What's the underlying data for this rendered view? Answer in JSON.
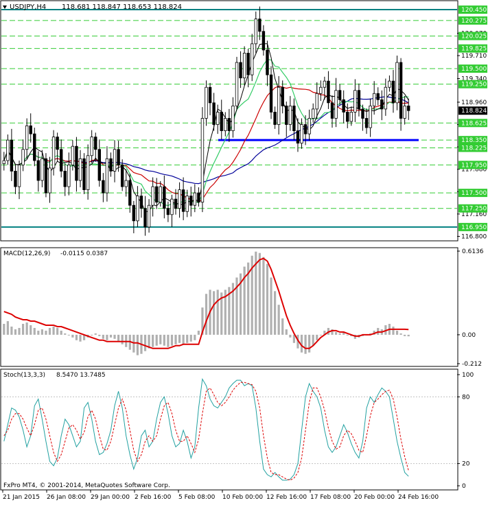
{
  "header": {
    "symbol": "USDJPY,H4",
    "ohlc": "118.681 118.847 118.653 118.824"
  },
  "colors": {
    "background": "#ffffff",
    "bull_candle": "#000000",
    "bear_candle": "#000000",
    "ma_fast": "#000000",
    "ma_mid": "#33cc66",
    "ma_slow": "#cc0000",
    "ma_long": "#000099",
    "level_line": "#008080",
    "dash_line": "#33cc33",
    "support_line": "#0000ff",
    "macd_hist": "#b0b0b0",
    "macd_signal": "#dd0000",
    "stoch_main": "#20a0a0",
    "stoch_signal": "#dd0000"
  },
  "footer": {
    "copyright": "FxPro MT4, © 2001-2014, MetaQuotes Software Corp."
  },
  "chart_data": [
    {
      "type": "candlestick",
      "title": "USDJPY,H4",
      "ylim": [
        116.75,
        120.55
      ],
      "y_ticks": [
        "116.800",
        "117.160",
        "117.520",
        "117.880",
        "118.240",
        "118.600",
        "118.960",
        "119.340",
        "119.710",
        "120.070"
      ],
      "level_labels": [
        "120.450",
        "120.275",
        "120.025",
        "119.825",
        "119.500",
        "119.250",
        "118.625",
        "118.350",
        "118.225",
        "117.950",
        "117.500",
        "117.250",
        "116.950"
      ],
      "current_price": "118.824",
      "levels": {
        "solid": [
          120.45,
          116.95
        ],
        "dashed": [
          120.275,
          120.025,
          119.825,
          119.5,
          119.25,
          118.625,
          118.35,
          118.225,
          117.95,
          117.5,
          117.25
        ]
      },
      "support_line": 118.35,
      "x_labels": [
        "21 Jan 2015",
        "26 Jan 08:00",
        "29 Jan 00:00",
        "2 Feb 16:00",
        "5 Feb 08:00",
        "10 Feb 00:00",
        "12 Feb 16:00",
        "17 Feb 08:00",
        "20 Feb 00:00",
        "24 Feb 16:00"
      ],
      "closes": [
        118.02,
        118.35,
        117.85,
        117.6,
        117.95,
        118.2,
        118.58,
        118.45,
        118.02,
        117.7,
        118.05,
        117.5,
        117.9,
        118.4,
        118.2,
        117.85,
        117.6,
        117.95,
        118.25,
        117.7,
        118.05,
        117.55,
        118.1,
        118.4,
        118.2,
        117.7,
        117.5,
        118.05,
        117.85,
        118.2,
        117.95,
        117.6,
        117.7,
        117.3,
        117.05,
        117.45,
        117.25,
        116.95,
        117.3,
        117.6,
        117.35,
        117.6,
        117.25,
        117.15,
        117.4,
        117.25,
        117.55,
        117.2,
        117.45,
        117.3,
        117.5,
        117.35,
        118.7,
        119.2,
        118.95,
        118.6,
        118.8,
        118.5,
        118.7,
        118.5,
        118.9,
        119.6,
        119.35,
        119.75,
        119.4,
        119.9,
        120.3,
        120.1,
        119.8,
        119.4,
        118.8,
        118.6,
        119.2,
        118.9,
        118.6,
        118.9,
        118.5,
        118.3,
        118.6,
        118.45,
        118.7,
        118.85,
        119.1,
        119.2,
        119.3,
        118.95,
        118.7,
        119.15,
        119.0,
        118.8,
        118.65,
        118.8,
        119.15,
        118.85,
        118.7,
        118.55,
        118.9,
        119.1,
        119.0,
        118.85,
        119.2,
        119.3,
        118.95,
        119.6,
        118.7,
        118.9,
        118.824
      ],
      "series": [
        {
          "name": "MA",
          "values": []
        }
      ]
    },
    {
      "type": "macd",
      "title": "MACD(12,26,9) -0.0115 0.0387",
      "params": "MACD(12,26,9)",
      "values_text": "-0.0115 0.0387",
      "ylim": [
        -0.212,
        0.6136
      ],
      "y_ticks": [
        "0.6136",
        "0.00",
        "-0.212"
      ],
      "histogram": [
        0.08,
        0.1,
        0.06,
        0.04,
        0.05,
        0.08,
        0.09,
        0.07,
        0.05,
        0.03,
        0.04,
        0.03,
        0.05,
        0.06,
        0.05,
        0.03,
        0.01,
        0.0,
        -0.02,
        -0.04,
        -0.05,
        -0.04,
        -0.02,
        0.0,
        0.01,
        -0.01,
        -0.03,
        -0.04,
        -0.02,
        -0.03,
        -0.05,
        -0.07,
        -0.09,
        -0.11,
        -0.13,
        -0.15,
        -0.14,
        -0.12,
        -0.1,
        -0.09,
        -0.08,
        -0.07,
        -0.08,
        -0.09,
        -0.08,
        -0.07,
        -0.06,
        -0.07,
        -0.06,
        -0.05,
        -0.04,
        0.03,
        0.2,
        0.3,
        0.33,
        0.32,
        0.33,
        0.31,
        0.33,
        0.35,
        0.38,
        0.42,
        0.45,
        0.5,
        0.53,
        0.58,
        0.61,
        0.6,
        0.57,
        0.52,
        0.42,
        0.32,
        0.22,
        0.12,
        0.04,
        -0.02,
        -0.06,
        -0.1,
        -0.13,
        -0.14,
        -0.13,
        -0.08,
        -0.04,
        0.0,
        0.03,
        0.05,
        0.04,
        0.02,
        0.01,
        0.02,
        0.0,
        -0.01,
        -0.03,
        -0.02,
        -0.01,
        0.0,
        0.01,
        0.03,
        0.05,
        0.04,
        0.07,
        0.08,
        0.06,
        0.03,
        0.01,
        -0.01,
        -0.0115
      ],
      "signal": [
        0.17,
        0.16,
        0.15,
        0.13,
        0.12,
        0.11,
        0.11,
        0.1,
        0.1,
        0.09,
        0.08,
        0.07,
        0.07,
        0.07,
        0.06,
        0.06,
        0.05,
        0.04,
        0.03,
        0.02,
        0.01,
        0.0,
        -0.01,
        -0.02,
        -0.03,
        -0.04,
        -0.04,
        -0.05,
        -0.05,
        -0.05,
        -0.05,
        -0.05,
        -0.05,
        -0.05,
        -0.06,
        -0.06,
        -0.07,
        -0.08,
        -0.09,
        -0.1,
        -0.1,
        -0.1,
        -0.1,
        -0.1,
        -0.09,
        -0.08,
        -0.08,
        -0.07,
        -0.07,
        -0.07,
        -0.07,
        -0.07,
        0.02,
        0.1,
        0.17,
        0.22,
        0.25,
        0.27,
        0.28,
        0.3,
        0.32,
        0.35,
        0.38,
        0.42,
        0.45,
        0.49,
        0.52,
        0.55,
        0.56,
        0.54,
        0.48,
        0.4,
        0.32,
        0.23,
        0.14,
        0.07,
        0.01,
        -0.04,
        -0.08,
        -0.1,
        -0.1,
        -0.08,
        -0.05,
        -0.02,
        0.0,
        0.02,
        0.03,
        0.03,
        0.02,
        0.02,
        0.01,
        0.0,
        -0.01,
        -0.01,
        0.0,
        0.0,
        0.0,
        0.01,
        0.02,
        0.02,
        0.03,
        0.04,
        0.04,
        0.04,
        0.04,
        0.04,
        0.0387
      ]
    },
    {
      "type": "stochastic",
      "title": "Stoch(13,3,3) 8.5470 13.7485",
      "params": "Stoch(13,3,3)",
      "values_text": "8.5470 13.7485",
      "ylim": [
        0,
        100
      ],
      "y_ticks": [
        "100",
        "80",
        "20",
        "0"
      ],
      "main": [
        40,
        55,
        70,
        68,
        62,
        50,
        35,
        45,
        72,
        78,
        60,
        40,
        22,
        18,
        25,
        45,
        60,
        55,
        45,
        35,
        40,
        70,
        75,
        60,
        40,
        28,
        30,
        38,
        50,
        72,
        85,
        70,
        45,
        28,
        15,
        25,
        45,
        50,
        35,
        40,
        60,
        75,
        80,
        65,
        45,
        35,
        38,
        50,
        40,
        25,
        35,
        70,
        96,
        90,
        78,
        72,
        70,
        75,
        80,
        88,
        92,
        95,
        95,
        90,
        92,
        90,
        70,
        40,
        15,
        10,
        8,
        12,
        8,
        5,
        5,
        6,
        10,
        20,
        50,
        80,
        92,
        85,
        80,
        70,
        50,
        35,
        30,
        35,
        45,
        55,
        48,
        38,
        30,
        25,
        40,
        70,
        80,
        75,
        82,
        88,
        85,
        80,
        60,
        40,
        25,
        12,
        8.547
      ],
      "signal": [
        45,
        50,
        60,
        65,
        65,
        60,
        52,
        45,
        55,
        68,
        70,
        60,
        45,
        30,
        22,
        28,
        40,
        52,
        55,
        50,
        42,
        48,
        62,
        68,
        60,
        45,
        33,
        32,
        40,
        55,
        70,
        78,
        68,
        50,
        32,
        22,
        28,
        40,
        45,
        40,
        45,
        60,
        72,
        75,
        65,
        50,
        40,
        40,
        45,
        38,
        30,
        42,
        65,
        85,
        88,
        82,
        75,
        72,
        75,
        80,
        86,
        90,
        93,
        93,
        92,
        91,
        85,
        70,
        45,
        25,
        12,
        10,
        10,
        8,
        6,
        5,
        7,
        12,
        25,
        50,
        75,
        88,
        88,
        80,
        68,
        52,
        40,
        33,
        35,
        45,
        50,
        47,
        40,
        32,
        30,
        45,
        63,
        75,
        78,
        82,
        85,
        86,
        78,
        62,
        42,
        26,
        13.7485
      ]
    }
  ]
}
